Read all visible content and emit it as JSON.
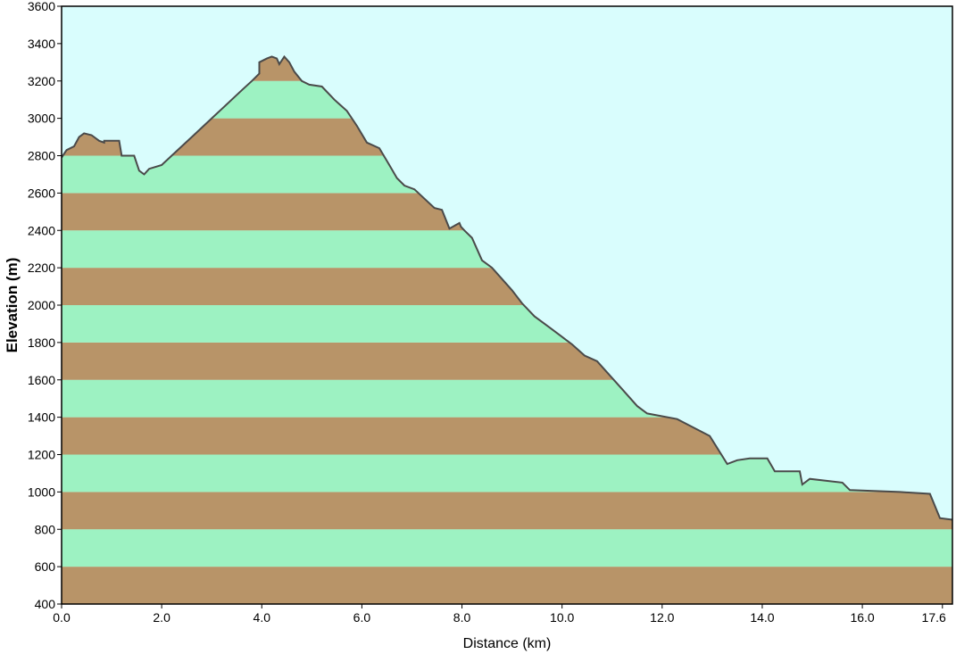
{
  "chart_data": {
    "type": "area",
    "title": "",
    "xlabel": "Distance   (km)",
    "ylabel": "Elevation (m)",
    "xlim": [
      0,
      17.8
    ],
    "ylim": [
      400,
      3600
    ],
    "x_ticks": [
      {
        "value": 0,
        "label": "0.0"
      },
      {
        "value": 2,
        "label": "2.0"
      },
      {
        "value": 4,
        "label": "4.0"
      },
      {
        "value": 6,
        "label": "6.0"
      },
      {
        "value": 8,
        "label": "8.0"
      },
      {
        "value": 10,
        "label": "10.0"
      },
      {
        "value": 12,
        "label": "12.0"
      },
      {
        "value": 14,
        "label": "14.0"
      },
      {
        "value": 16,
        "label": "16.0"
      },
      {
        "value": 17.6,
        "label": "17.6"
      }
    ],
    "y_ticks": [
      {
        "value": 400,
        "label": "400"
      },
      {
        "value": 600,
        "label": "600"
      },
      {
        "value": 800,
        "label": "800"
      },
      {
        "value": 1000,
        "label": "1000"
      },
      {
        "value": 1200,
        "label": "1200"
      },
      {
        "value": 1400,
        "label": "1400"
      },
      {
        "value": 1600,
        "label": "1600"
      },
      {
        "value": 1800,
        "label": "1800"
      },
      {
        "value": 2000,
        "label": "2000"
      },
      {
        "value": 2200,
        "label": "2200"
      },
      {
        "value": 2400,
        "label": "2400"
      },
      {
        "value": 2600,
        "label": "2600"
      },
      {
        "value": 2800,
        "label": "2800"
      },
      {
        "value": 3000,
        "label": "3000"
      },
      {
        "value": 3200,
        "label": "3200"
      },
      {
        "value": 3400,
        "label": "3400"
      },
      {
        "value": 3600,
        "label": "3600"
      }
    ],
    "band_step": 200,
    "colors": {
      "sky": "#d9fdfd",
      "band_green": "#9df2c2",
      "band_brown": "#b89468",
      "profile_line": "#4a4a4a",
      "plot_border": "#000000"
    },
    "series": [
      {
        "x": [
          0.0,
          0.1,
          0.25,
          0.35,
          0.45,
          0.6,
          0.75,
          0.85,
          0.85,
          1.15,
          1.2,
          1.2,
          1.45,
          1.55,
          1.65,
          1.75,
          2.0,
          2.2,
          2.4,
          2.6,
          2.8,
          3.0,
          3.2,
          3.4,
          3.6,
          3.8,
          3.95,
          3.95,
          4.1,
          4.2,
          4.3,
          4.35,
          4.45,
          4.55,
          4.65,
          4.8,
          4.95,
          5.2,
          5.45,
          5.7,
          5.9,
          6.1,
          6.35,
          6.55,
          6.7,
          6.85,
          7.05,
          7.25,
          7.45,
          7.6,
          7.75,
          7.95,
          7.98,
          8.05,
          8.2,
          8.4,
          8.4,
          8.6,
          8.8,
          9.0,
          9.2,
          9.45,
          9.75,
          10.0,
          10.2,
          10.45,
          10.7,
          11.2,
          11.5,
          11.7,
          12.3,
          12.95,
          13.3,
          13.5,
          13.75,
          14.1,
          14.25,
          14.75,
          14.8,
          14.95,
          15.6,
          15.75,
          16.75,
          17.35,
          17.55,
          17.85
        ],
        "y": [
          2790,
          2830,
          2850,
          2900,
          2920,
          2910,
          2880,
          2870,
          2880,
          2880,
          2800,
          2800,
          2800,
          2720,
          2700,
          2730,
          2750,
          2800,
          2850,
          2900,
          2950,
          3000,
          3050,
          3100,
          3150,
          3200,
          3240,
          3300,
          3320,
          3330,
          3320,
          3290,
          3330,
          3300,
          3250,
          3200,
          3180,
          3170,
          3100,
          3040,
          2960,
          2870,
          2840,
          2750,
          2680,
          2640,
          2620,
          2570,
          2520,
          2510,
          2410,
          2440,
          2420,
          2400,
          2360,
          2240,
          2240,
          2200,
          2140,
          2080,
          2010,
          1940,
          1880,
          1830,
          1790,
          1730,
          1700,
          1550,
          1460,
          1420,
          1390,
          1300,
          1150,
          1170,
          1180,
          1180,
          1110,
          1110,
          1040,
          1070,
          1050,
          1010,
          1000,
          990,
          860,
          850
        ]
      }
    ]
  }
}
